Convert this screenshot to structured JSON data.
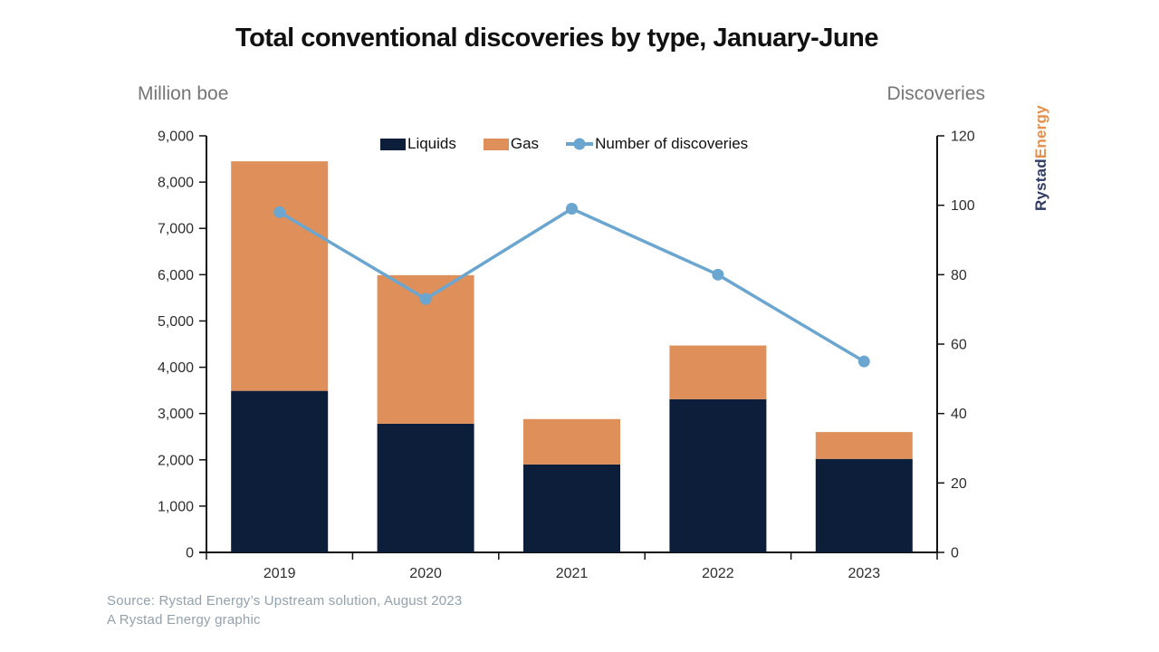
{
  "page": {
    "title": "Total conventional discoveries by type, January-June",
    "left_axis_caption": "Million boe",
    "right_axis_caption": "Discoveries",
    "source_line1": "Source: Rystad Energy’s Upstream solution, August 2023",
    "source_line2": "A Rystad Energy graphic",
    "logo": {
      "part1": "Rystad",
      "part2": "Energy"
    }
  },
  "chart_data": {
    "type": "bar",
    "subtype": "stacked-bar-with-line-overlay",
    "title": "Total conventional discoveries by type, January-June",
    "categories": [
      "2019",
      "2020",
      "2021",
      "2022",
      "2023"
    ],
    "series": [
      {
        "name": "Liquids",
        "type": "bar",
        "stack": "boe",
        "color": "#0d1e3a",
        "axis": "left",
        "values": [
          3490,
          2780,
          1900,
          3310,
          2020
        ]
      },
      {
        "name": "Gas",
        "type": "bar",
        "stack": "boe",
        "color": "#df905a",
        "axis": "left",
        "values": [
          4960,
          3210,
          980,
          1160,
          580
        ]
      },
      {
        "name": "Number of discoveries",
        "type": "line",
        "color": "#6ba6d0",
        "axis": "right",
        "values": [
          98,
          73,
          99,
          80,
          55
        ]
      }
    ],
    "stack_totals": [
      8450,
      5990,
      2880,
      4470,
      2600
    ],
    "left_axis": {
      "label": "Million boe",
      "min": 0,
      "max": 9000,
      "step": 1000
    },
    "right_axis": {
      "label": "Discoveries",
      "min": 0,
      "max": 120,
      "step": 20
    },
    "legend_position": "top-inside",
    "grid": false,
    "colors": {
      "liquids": "#0d1e3a",
      "gas": "#df905a",
      "line": "#6ba6d0",
      "axis": "#111111",
      "tick_text": "#2e2e2e",
      "caption_text": "#757575",
      "source_text": "#93a1ad",
      "logo_navy": "#303c63",
      "logo_orange": "#e3904e"
    }
  }
}
